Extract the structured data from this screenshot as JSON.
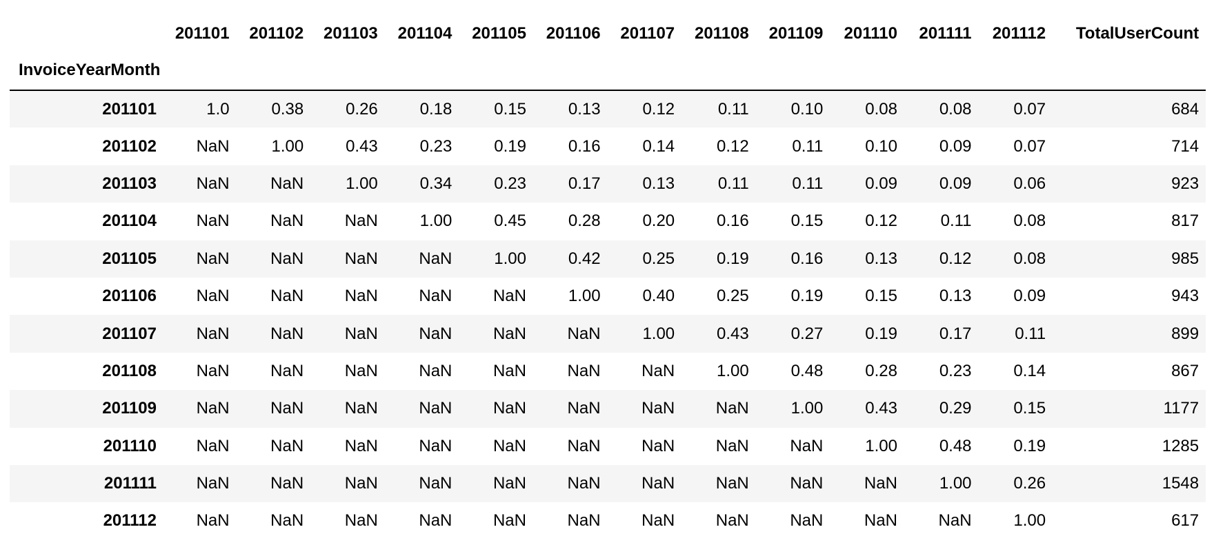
{
  "table": {
    "index_name": "InvoiceYearMonth",
    "columns": [
      "201101",
      "201102",
      "201103",
      "201104",
      "201105",
      "201106",
      "201107",
      "201108",
      "201109",
      "201110",
      "201111",
      "201112",
      "TotalUserCount"
    ],
    "rows": [
      {
        "label": "201101",
        "cells": [
          "1.0",
          "0.38",
          "0.26",
          "0.18",
          "0.15",
          "0.13",
          "0.12",
          "0.11",
          "0.10",
          "0.08",
          "0.08",
          "0.07",
          "684"
        ]
      },
      {
        "label": "201102",
        "cells": [
          "NaN",
          "1.00",
          "0.43",
          "0.23",
          "0.19",
          "0.16",
          "0.14",
          "0.12",
          "0.11",
          "0.10",
          "0.09",
          "0.07",
          "714"
        ]
      },
      {
        "label": "201103",
        "cells": [
          "NaN",
          "NaN",
          "1.00",
          "0.34",
          "0.23",
          "0.17",
          "0.13",
          "0.11",
          "0.11",
          "0.09",
          "0.09",
          "0.06",
          "923"
        ]
      },
      {
        "label": "201104",
        "cells": [
          "NaN",
          "NaN",
          "NaN",
          "1.00",
          "0.45",
          "0.28",
          "0.20",
          "0.16",
          "0.15",
          "0.12",
          "0.11",
          "0.08",
          "817"
        ]
      },
      {
        "label": "201105",
        "cells": [
          "NaN",
          "NaN",
          "NaN",
          "NaN",
          "1.00",
          "0.42",
          "0.25",
          "0.19",
          "0.16",
          "0.13",
          "0.12",
          "0.08",
          "985"
        ]
      },
      {
        "label": "201106",
        "cells": [
          "NaN",
          "NaN",
          "NaN",
          "NaN",
          "NaN",
          "1.00",
          "0.40",
          "0.25",
          "0.19",
          "0.15",
          "0.13",
          "0.09",
          "943"
        ]
      },
      {
        "label": "201107",
        "cells": [
          "NaN",
          "NaN",
          "NaN",
          "NaN",
          "NaN",
          "NaN",
          "1.00",
          "0.43",
          "0.27",
          "0.19",
          "0.17",
          "0.11",
          "899"
        ]
      },
      {
        "label": "201108",
        "cells": [
          "NaN",
          "NaN",
          "NaN",
          "NaN",
          "NaN",
          "NaN",
          "NaN",
          "1.00",
          "0.48",
          "0.28",
          "0.23",
          "0.14",
          "867"
        ]
      },
      {
        "label": "201109",
        "cells": [
          "NaN",
          "NaN",
          "NaN",
          "NaN",
          "NaN",
          "NaN",
          "NaN",
          "NaN",
          "1.00",
          "0.43",
          "0.29",
          "0.15",
          "1177"
        ]
      },
      {
        "label": "201110",
        "cells": [
          "NaN",
          "NaN",
          "NaN",
          "NaN",
          "NaN",
          "NaN",
          "NaN",
          "NaN",
          "NaN",
          "1.00",
          "0.48",
          "0.19",
          "1285"
        ]
      },
      {
        "label": "201111",
        "cells": [
          "NaN",
          "NaN",
          "NaN",
          "NaN",
          "NaN",
          "NaN",
          "NaN",
          "NaN",
          "NaN",
          "NaN",
          "1.00",
          "0.26",
          "1548"
        ]
      },
      {
        "label": "201112",
        "cells": [
          "NaN",
          "NaN",
          "NaN",
          "NaN",
          "NaN",
          "NaN",
          "NaN",
          "NaN",
          "NaN",
          "NaN",
          "NaN",
          "1.00",
          "617"
        ]
      }
    ]
  },
  "colors": {
    "stripe": "#f5f5f5",
    "background": "#ffffff",
    "header_rule": "#000000",
    "text": "#000000"
  }
}
